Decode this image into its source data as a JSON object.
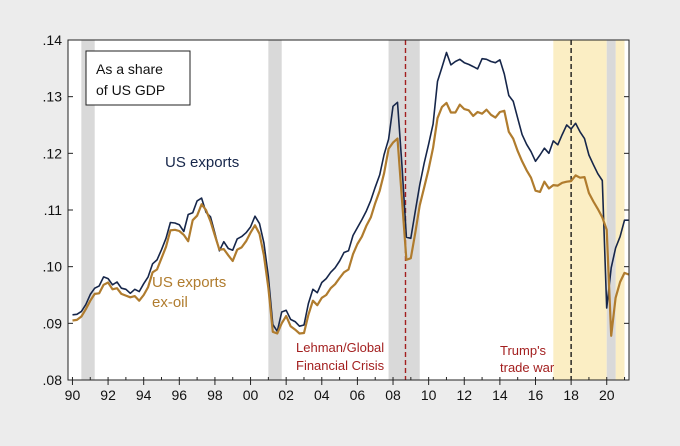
{
  "chart_data": {
    "type": "line",
    "title": "",
    "xlabel": "",
    "ylabel": "",
    "ylim": [
      0.08,
      0.14
    ],
    "xlim": [
      1989.75,
      2021.25
    ],
    "y_ticks": [
      ".08",
      ".09",
      ".10",
      ".11",
      ".12",
      ".13",
      ".14"
    ],
    "y_tick_values": [
      0.08,
      0.09,
      0.1,
      0.11,
      0.12,
      0.13,
      0.14
    ],
    "x_ticks": [
      "90",
      "92",
      "94",
      "96",
      "98",
      "00",
      "02",
      "04",
      "06",
      "08",
      "10",
      "12",
      "14",
      "16",
      "18",
      "20"
    ],
    "x_tick_values": [
      1990,
      1992,
      1994,
      1996,
      1998,
      2000,
      2002,
      2004,
      2006,
      2008,
      2010,
      2012,
      2014,
      2016,
      2018,
      2020
    ],
    "grid": false,
    "legend_box": {
      "line1": "As a share",
      "line2": "of US GDP"
    },
    "recessions": [
      {
        "start": 1990.5,
        "end": 1991.25
      },
      {
        "start": 2001.0,
        "end": 2001.75
      },
      {
        "start": 2007.75,
        "end": 2009.5
      },
      {
        "start": 2020.0,
        "end": 2020.5
      }
    ],
    "trade_war_shading": [
      {
        "start": 2017.0,
        "end": 2020.0
      },
      {
        "start": 2020.5,
        "end": 2021.0
      }
    ],
    "event_lines": [
      {
        "x": 2008.7,
        "color": "#a31f1f",
        "label_lines": [
          "Lehman/Global",
          "Financial Crisis"
        ]
      },
      {
        "x": 2018.0,
        "color": "#1a1a1a",
        "label_lines": [
          "Trump's",
          "trade war"
        ]
      }
    ],
    "series": [
      {
        "name": "US exports",
        "label": "US exports",
        "color": "#16264a",
        "x": [
          1990.0,
          1990.25,
          1990.5,
          1990.75,
          1991.0,
          1991.25,
          1991.5,
          1991.75,
          1992.0,
          1992.25,
          1992.5,
          1992.75,
          1993.0,
          1993.25,
          1993.5,
          1993.75,
          1994.0,
          1994.25,
          1994.5,
          1994.75,
          1995.0,
          1995.25,
          1995.5,
          1995.75,
          1996.0,
          1996.25,
          1996.5,
          1996.75,
          1997.0,
          1997.25,
          1997.5,
          1997.75,
          1998.0,
          1998.25,
          1998.5,
          1998.75,
          1999.0,
          1999.25,
          1999.5,
          1999.75,
          2000.0,
          2000.25,
          2000.5,
          2000.75,
          2001.0,
          2001.25,
          2001.5,
          2001.75,
          2002.0,
          2002.25,
          2002.5,
          2002.75,
          2003.0,
          2003.25,
          2003.5,
          2003.75,
          2004.0,
          2004.25,
          2004.5,
          2004.75,
          2005.0,
          2005.25,
          2005.5,
          2005.75,
          2006.0,
          2006.25,
          2006.5,
          2006.75,
          2007.0,
          2007.25,
          2007.5,
          2007.75,
          2008.0,
          2008.25,
          2008.5,
          2008.75,
          2009.0,
          2009.25,
          2009.5,
          2009.75,
          2010.0,
          2010.25,
          2010.5,
          2010.75,
          2011.0,
          2011.25,
          2011.5,
          2011.75,
          2012.0,
          2012.25,
          2012.5,
          2012.75,
          2013.0,
          2013.25,
          2013.5,
          2013.75,
          2014.0,
          2014.25,
          2014.5,
          2014.75,
          2015.0,
          2015.25,
          2015.5,
          2015.75,
          2016.0,
          2016.25,
          2016.5,
          2016.75,
          2017.0,
          2017.25,
          2017.5,
          2017.75,
          2018.0,
          2018.25,
          2018.5,
          2018.75,
          2019.0,
          2019.25,
          2019.5,
          2019.75,
          2020.0,
          2020.25,
          2020.5,
          2020.75,
          2021.0,
          2021.25
        ],
        "values": [
          0.0915,
          0.0916,
          0.0921,
          0.0933,
          0.0951,
          0.0962,
          0.0966,
          0.0982,
          0.0979,
          0.0968,
          0.0973,
          0.0962,
          0.096,
          0.0953,
          0.096,
          0.0956,
          0.097,
          0.0982,
          0.1005,
          0.1012,
          0.103,
          0.105,
          0.1078,
          0.1077,
          0.1074,
          0.1062,
          0.1092,
          0.1095,
          0.1116,
          0.1121,
          0.1096,
          0.1088,
          0.1059,
          0.1028,
          0.1044,
          0.1032,
          0.1029,
          0.1049,
          0.1053,
          0.106,
          0.107,
          0.1089,
          0.1076,
          0.1042,
          0.0982,
          0.0898,
          0.0886,
          0.092,
          0.0923,
          0.0907,
          0.0903,
          0.0895,
          0.0897,
          0.0935,
          0.096,
          0.0954,
          0.0972,
          0.0979,
          0.099,
          0.0998,
          0.101,
          0.1025,
          0.1028,
          0.1055,
          0.1069,
          0.1083,
          0.1098,
          0.1117,
          0.114,
          0.1162,
          0.1198,
          0.1225,
          0.1283,
          0.129,
          0.118,
          0.1052,
          0.105,
          0.1098,
          0.1144,
          0.1183,
          0.1216,
          0.1252,
          0.1327,
          0.1352,
          0.1378,
          0.1356,
          0.1362,
          0.1366,
          0.136,
          0.1357,
          0.1353,
          0.1349,
          0.1367,
          0.1366,
          0.1362,
          0.136,
          0.1365,
          0.134,
          0.1302,
          0.1292,
          0.1262,
          0.1233,
          0.1216,
          0.1203,
          0.1186,
          0.1197,
          0.1209,
          0.12,
          0.1222,
          0.1215,
          0.1233,
          0.125,
          0.1243,
          0.1253,
          0.1238,
          0.1226,
          0.1197,
          0.118,
          0.1164,
          0.1152,
          0.0927,
          0.0998,
          0.1033,
          0.1053,
          0.1082,
          0.1082
        ]
      },
      {
        "name": "US exports ex-oil",
        "label_lines": [
          "US exports",
          "ex-oil"
        ],
        "color": "#b07c2e",
        "x": [
          1990.0,
          1990.25,
          1990.5,
          1990.75,
          1991.0,
          1991.25,
          1991.5,
          1991.75,
          1992.0,
          1992.25,
          1992.5,
          1992.75,
          1993.0,
          1993.25,
          1993.5,
          1993.75,
          1994.0,
          1994.25,
          1994.5,
          1994.75,
          1995.0,
          1995.25,
          1995.5,
          1995.75,
          1996.0,
          1996.25,
          1996.5,
          1996.75,
          1997.0,
          1997.25,
          1997.5,
          1997.75,
          1998.0,
          1998.25,
          1998.5,
          1998.75,
          1999.0,
          1999.25,
          1999.5,
          1999.75,
          2000.0,
          2000.25,
          2000.5,
          2000.75,
          2001.0,
          2001.25,
          2001.5,
          2001.75,
          2002.0,
          2002.25,
          2002.5,
          2002.75,
          2003.0,
          2003.25,
          2003.5,
          2003.75,
          2004.0,
          2004.25,
          2004.5,
          2004.75,
          2005.0,
          2005.25,
          2005.5,
          2005.75,
          2006.0,
          2006.25,
          2006.5,
          2006.75,
          2007.0,
          2007.25,
          2007.5,
          2007.75,
          2008.0,
          2008.25,
          2008.5,
          2008.75,
          2009.0,
          2009.25,
          2009.5,
          2009.75,
          2010.0,
          2010.25,
          2010.5,
          2010.75,
          2011.0,
          2011.25,
          2011.5,
          2011.75,
          2012.0,
          2012.25,
          2012.5,
          2012.75,
          2013.0,
          2013.25,
          2013.5,
          2013.75,
          2014.0,
          2014.25,
          2014.5,
          2014.75,
          2015.0,
          2015.25,
          2015.5,
          2015.75,
          2016.0,
          2016.25,
          2016.5,
          2016.75,
          2017.0,
          2017.25,
          2017.5,
          2017.75,
          2018.0,
          2018.25,
          2018.5,
          2018.75,
          2019.0,
          2019.25,
          2019.5,
          2019.75,
          2020.0,
          2020.25,
          2020.5,
          2020.75,
          2021.0,
          2021.25
        ],
        "values": [
          0.0905,
          0.0906,
          0.0912,
          0.0925,
          0.094,
          0.0952,
          0.0953,
          0.0968,
          0.0972,
          0.096,
          0.0962,
          0.0952,
          0.0949,
          0.0946,
          0.0948,
          0.094,
          0.095,
          0.0964,
          0.099,
          0.0995,
          0.1015,
          0.1035,
          0.1064,
          0.1065,
          0.1063,
          0.1056,
          0.1045,
          0.1082,
          0.109,
          0.111,
          0.11,
          0.108,
          0.1055,
          0.103,
          0.1031,
          0.102,
          0.101,
          0.103,
          0.1034,
          0.1045,
          0.106,
          0.1073,
          0.1058,
          0.102,
          0.0962,
          0.0885,
          0.0882,
          0.09,
          0.0913,
          0.0895,
          0.0889,
          0.0882,
          0.0883,
          0.0915,
          0.094,
          0.0932,
          0.0945,
          0.095,
          0.0962,
          0.0969,
          0.098,
          0.099,
          0.0995,
          0.1022,
          0.104,
          0.1053,
          0.1072,
          0.1087,
          0.1112,
          0.1134,
          0.1165,
          0.1208,
          0.1219,
          0.1226,
          0.112,
          0.1012,
          0.1015,
          0.106,
          0.1108,
          0.114,
          0.1172,
          0.121,
          0.1262,
          0.1282,
          0.1289,
          0.1272,
          0.1272,
          0.1286,
          0.1278,
          0.1276,
          0.1266,
          0.1273,
          0.127,
          0.1277,
          0.1268,
          0.1263,
          0.1273,
          0.1275,
          0.1238,
          0.1226,
          0.1204,
          0.1186,
          0.117,
          0.1157,
          0.1134,
          0.1132,
          0.115,
          0.1138,
          0.1144,
          0.1143,
          0.1148,
          0.115,
          0.1151,
          0.1161,
          0.1157,
          0.1158,
          0.113,
          0.1115,
          0.1102,
          0.1087,
          0.1065,
          0.0878,
          0.0945,
          0.0973,
          0.0989,
          0.0986
        ]
      }
    ]
  }
}
